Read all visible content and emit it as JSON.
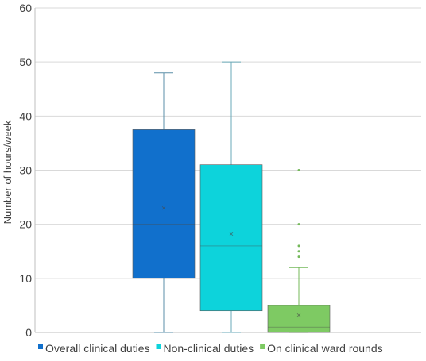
{
  "chart_data": {
    "type": "box",
    "title": "",
    "xlabel": "",
    "ylabel": "Number of hours/week",
    "ylim": [
      0,
      60
    ],
    "yticks": [
      0,
      10,
      20,
      30,
      40,
      50,
      60
    ],
    "grid": true,
    "legend_position": "bottom",
    "series": [
      {
        "name": "Overall clinical duties",
        "color": "#1170CC",
        "whisker_color": "#5B8FA8",
        "min": 0,
        "q1": 10,
        "median": 20,
        "q3": 37.5,
        "max": 48,
        "mean": 23,
        "outliers": []
      },
      {
        "name": "Non-clinical duties",
        "color": "#0DD3DB",
        "whisker_color": "#6AAAB8",
        "min": 0,
        "q1": 4,
        "median": 16,
        "q3": 31,
        "max": 50,
        "mean": 18.2,
        "outliers": []
      },
      {
        "name": "On clinical ward rounds",
        "color": "#7ECA63",
        "whisker_color": "#74B85A",
        "min": 0,
        "q1": 0,
        "median": 1,
        "q3": 5,
        "max": 12,
        "mean": 3.2,
        "outliers": [
          14,
          15,
          16,
          20,
          30
        ]
      }
    ]
  }
}
